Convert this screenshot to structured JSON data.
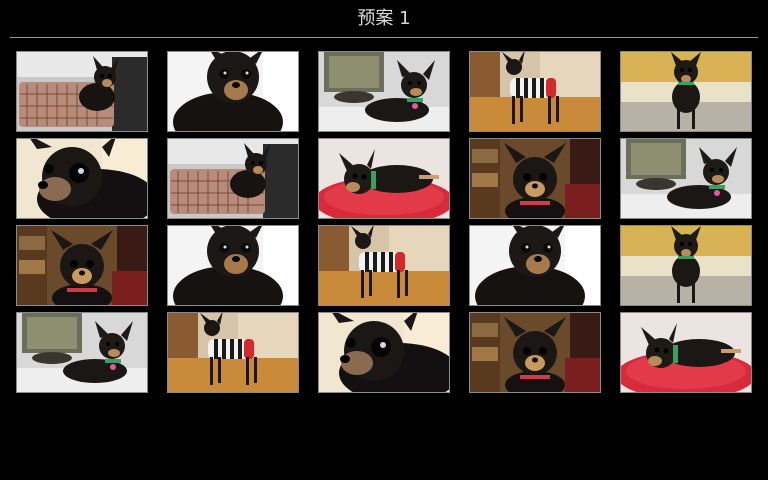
{
  "header": {
    "title": "预案 1"
  },
  "colors": {
    "background": "#000000",
    "title_text": "#d8d8d8",
    "divider": "#9a9a9a",
    "thumb_border": "#8a8a8a"
  },
  "photos": [
    {
      "scene": "dog-in-basket"
    },
    {
      "scene": "dog-closeup-bright"
    },
    {
      "scene": "dog-lying-window"
    },
    {
      "scene": "dog-striped-sweater"
    },
    {
      "scene": "dog-standing-yellow-wall"
    },
    {
      "scene": "dog-face-closeup"
    },
    {
      "scene": "dog-in-basket"
    },
    {
      "scene": "dog-on-red-cushion"
    },
    {
      "scene": "dog-portrait-shelf"
    },
    {
      "scene": "dog-lying-window"
    },
    {
      "scene": "dog-portrait-shelf"
    },
    {
      "scene": "dog-closeup-bright"
    },
    {
      "scene": "dog-striped-sweater"
    },
    {
      "scene": "dog-closeup-bright"
    },
    {
      "scene": "dog-standing-yellow-wall"
    },
    {
      "scene": "dog-lying-window"
    },
    {
      "scene": "dog-striped-sweater"
    },
    {
      "scene": "dog-face-closeup"
    },
    {
      "scene": "dog-portrait-shelf"
    },
    {
      "scene": "dog-on-red-cushion"
    }
  ]
}
